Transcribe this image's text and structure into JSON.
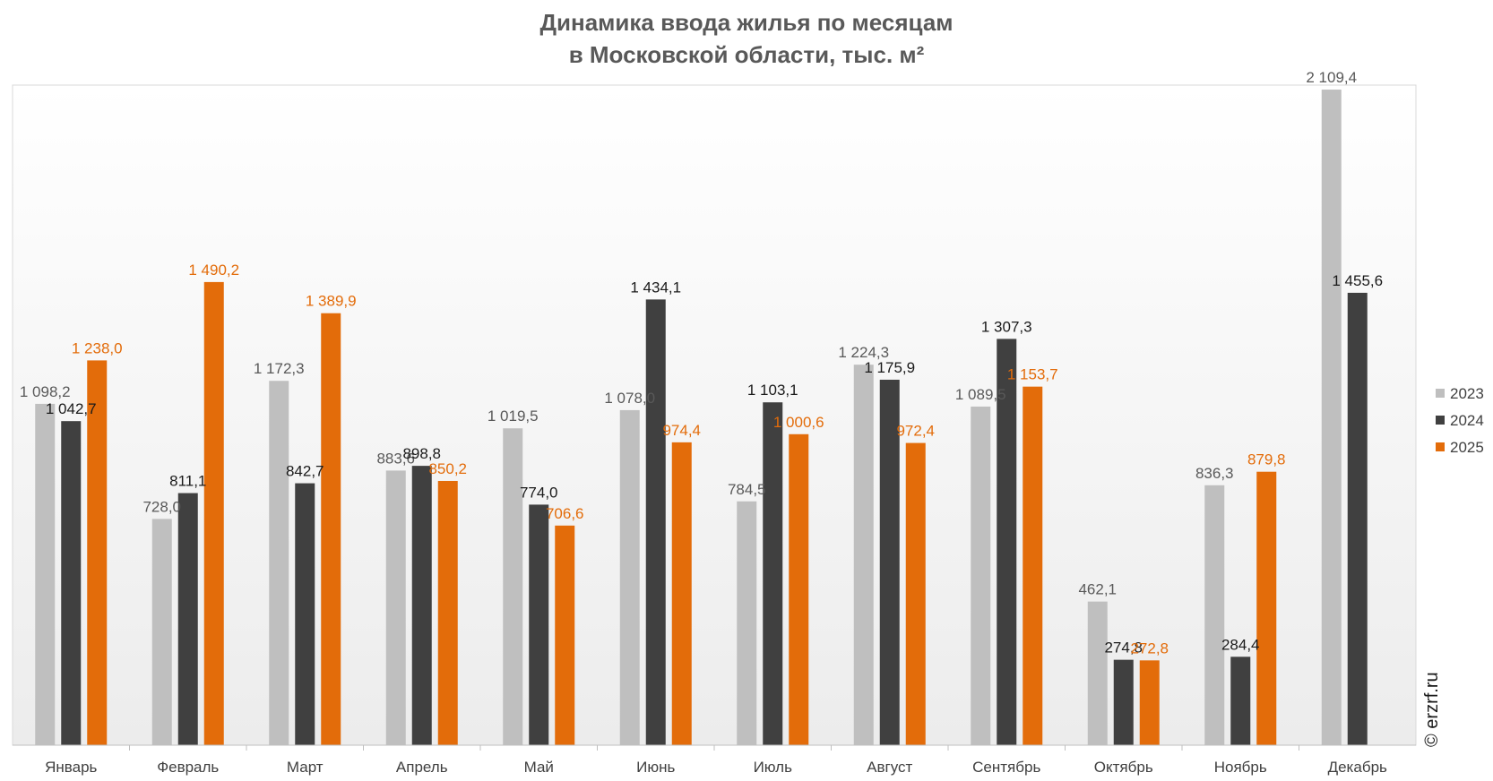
{
  "chart_data": {
    "type": "bar",
    "title": [
      "Динамика ввода жилья по месяцам",
      "в Московской области, тыс. м²"
    ],
    "categories": [
      "Январь",
      "Февраль",
      "Март",
      "Апрель",
      "Май",
      "Июнь",
      "Июль",
      "Август",
      "Сентябрь",
      "Октябрь",
      "Ноябрь",
      "Декабрь"
    ],
    "series": [
      {
        "name": "2023",
        "color": "#bfbfbf",
        "label_color": "#595959",
        "values": [
          1098.2,
          728.0,
          1172.3,
          883.6,
          1019.5,
          1078.0,
          784.5,
          1224.3,
          1089.5,
          462.1,
          836.3,
          2109.4
        ],
        "labels": [
          "1 098,2",
          "728,0",
          "1 172,3",
          "883,6",
          "1 019,5",
          "1 078,0",
          "784,5",
          "1 224,3",
          "1 089,5",
          "462,1",
          "836,3",
          "2 109,4"
        ]
      },
      {
        "name": "2024",
        "color": "#404040",
        "label_color": "#1a1a1a",
        "values": [
          1042.7,
          811.1,
          842.7,
          898.8,
          774.0,
          1434.1,
          1103.1,
          1175.9,
          1307.3,
          274.8,
          284.4,
          1455.6
        ],
        "labels": [
          "1 042,7",
          "811,1",
          "842,7",
          "898,8",
          "774,0",
          "1 434,1",
          "1 103,1",
          "1 175,9",
          "1 307,3",
          "274,8",
          "284,4",
          "1 455,6"
        ]
      },
      {
        "name": "2025",
        "color": "#e36c0a",
        "label_color": "#e36c0a",
        "values": [
          1238.0,
          1490.2,
          1389.9,
          850.2,
          706.6,
          974.4,
          1000.6,
          972.4,
          1153.7,
          272.8,
          879.8,
          null
        ],
        "labels": [
          "1 238,0",
          "1 490,2",
          "1 389,9",
          "850,2",
          "706,6",
          "974,4",
          "1 000,6",
          "972,4",
          "1 153,7",
          "272,8",
          "879,8",
          ""
        ]
      }
    ],
    "ylim": [
      0,
      2300
    ],
    "grid": false,
    "legend": "right",
    "xlabel": "",
    "ylabel": ""
  },
  "watermark": "© erzrf.ru"
}
